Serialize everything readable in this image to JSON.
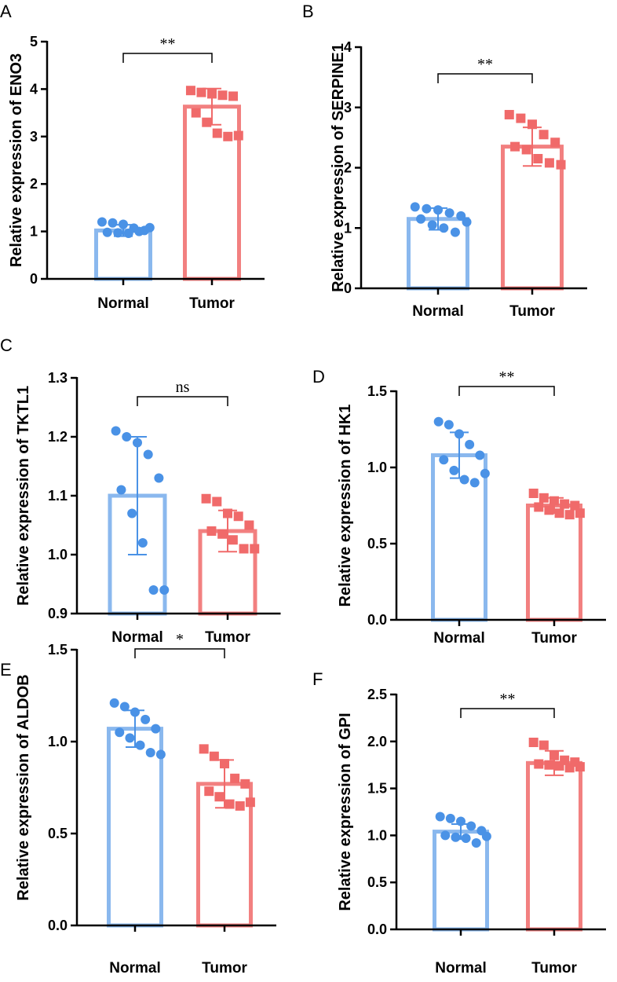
{
  "colors": {
    "normal": "#8ab8ee",
    "normal_points": "#4a92e6",
    "tumor": "#f28080",
    "tumor_points": "#f06a6a",
    "axis": "#000000"
  },
  "chart_data": [
    {
      "panel": "A",
      "type": "bar",
      "ylabel": "Relative expression of ENO3",
      "ylim": [
        0,
        5
      ],
      "yticks": [
        "0",
        "1",
        "2",
        "3",
        "4",
        "5"
      ],
      "categories": [
        "Normal",
        "Tumor"
      ],
      "means": [
        1.02,
        3.63
      ],
      "sd": [
        0.12,
        0.38
      ],
      "points": [
        [
          1.2,
          1.18,
          1.15,
          1.07,
          1.02,
          0.98,
          0.97,
          0.96,
          1.0,
          1.08
        ],
        [
          3.97,
          3.93,
          3.9,
          3.87,
          3.85,
          3.5,
          3.3,
          3.07,
          3.0,
          3.02
        ]
      ],
      "significance": "**"
    },
    {
      "panel": "B",
      "type": "bar",
      "ylabel": "Relative expression of SERPINE1",
      "ylim": [
        0,
        4
      ],
      "yticks": [
        "0",
        "1",
        "2",
        "3",
        "4"
      ],
      "categories": [
        "Normal",
        "Tumor"
      ],
      "means": [
        1.15,
        2.35
      ],
      "sd": [
        0.18,
        0.32
      ],
      "points": [
        [
          1.35,
          1.32,
          1.3,
          1.25,
          1.2,
          1.15,
          1.05,
          1.0,
          0.93,
          1.1
        ],
        [
          2.88,
          2.82,
          2.72,
          2.55,
          2.42,
          2.35,
          2.3,
          2.15,
          2.08,
          2.05
        ]
      ],
      "significance": "**"
    },
    {
      "panel": "C",
      "type": "bar",
      "ylabel": "Relative expression of TKTL1",
      "ylim": [
        0.9,
        1.3
      ],
      "yticks": [
        "0.9",
        "1.0",
        "1.1",
        "1.2",
        "1.3"
      ],
      "categories": [
        "Normal",
        "Tumor"
      ],
      "means": [
        1.1,
        1.04
      ],
      "sd": [
        0.1,
        0.035
      ],
      "points": [
        [
          1.21,
          1.2,
          1.19,
          1.17,
          1.13,
          1.11,
          1.07,
          1.02,
          0.94,
          0.94
        ],
        [
          1.095,
          1.09,
          1.07,
          1.065,
          1.05,
          1.04,
          1.035,
          1.025,
          1.01,
          1.01
        ]
      ],
      "significance": "ns"
    },
    {
      "panel": "D",
      "type": "bar",
      "ylabel": "Relative expression of HK1",
      "ylim": [
        0.0,
        1.5
      ],
      "yticks": [
        "0.0",
        "0.5",
        "1.0",
        "1.5"
      ],
      "categories": [
        "Normal",
        "Tumor"
      ],
      "means": [
        1.08,
        0.75
      ],
      "sd": [
        0.15,
        0.05
      ],
      "points": [
        [
          1.3,
          1.28,
          1.22,
          1.15,
          1.08,
          1.05,
          0.98,
          0.92,
          0.9,
          0.96
        ],
        [
          0.83,
          0.8,
          0.78,
          0.76,
          0.75,
          0.74,
          0.72,
          0.7,
          0.69,
          0.7
        ]
      ],
      "significance": "**"
    },
    {
      "panel": "E",
      "type": "bar",
      "ylabel": "Relative expression of ALDOB",
      "ylim": [
        0.0,
        1.5
      ],
      "yticks": [
        "0.0",
        "0.5",
        "1.0",
        "1.5"
      ],
      "categories": [
        "Normal",
        "Tumor"
      ],
      "means": [
        1.07,
        0.77
      ],
      "sd": [
        0.1,
        0.13
      ],
      "points": [
        [
          1.21,
          1.19,
          1.16,
          1.12,
          1.07,
          1.05,
          1.02,
          0.98,
          0.94,
          0.93
        ],
        [
          0.96,
          0.92,
          0.88,
          0.8,
          0.77,
          0.73,
          0.7,
          0.66,
          0.65,
          0.67
        ]
      ],
      "significance": "*"
    },
    {
      "panel": "F",
      "type": "bar",
      "ylabel": "Relative expression of GPI",
      "ylim": [
        0.0,
        2.5
      ],
      "yticks": [
        "0.0",
        "0.5",
        "1.0",
        "1.5",
        "2.0",
        "2.5"
      ],
      "categories": [
        "Normal",
        "Tumor"
      ],
      "means": [
        1.04,
        1.77
      ],
      "sd": [
        0.08,
        0.13
      ],
      "points": [
        [
          1.2,
          1.18,
          1.15,
          1.1,
          1.05,
          1.0,
          0.98,
          0.97,
          0.92,
          0.99
        ],
        [
          1.99,
          1.96,
          1.85,
          1.8,
          1.78,
          1.76,
          1.75,
          1.74,
          1.72,
          1.73
        ]
      ],
      "significance": "**"
    }
  ]
}
